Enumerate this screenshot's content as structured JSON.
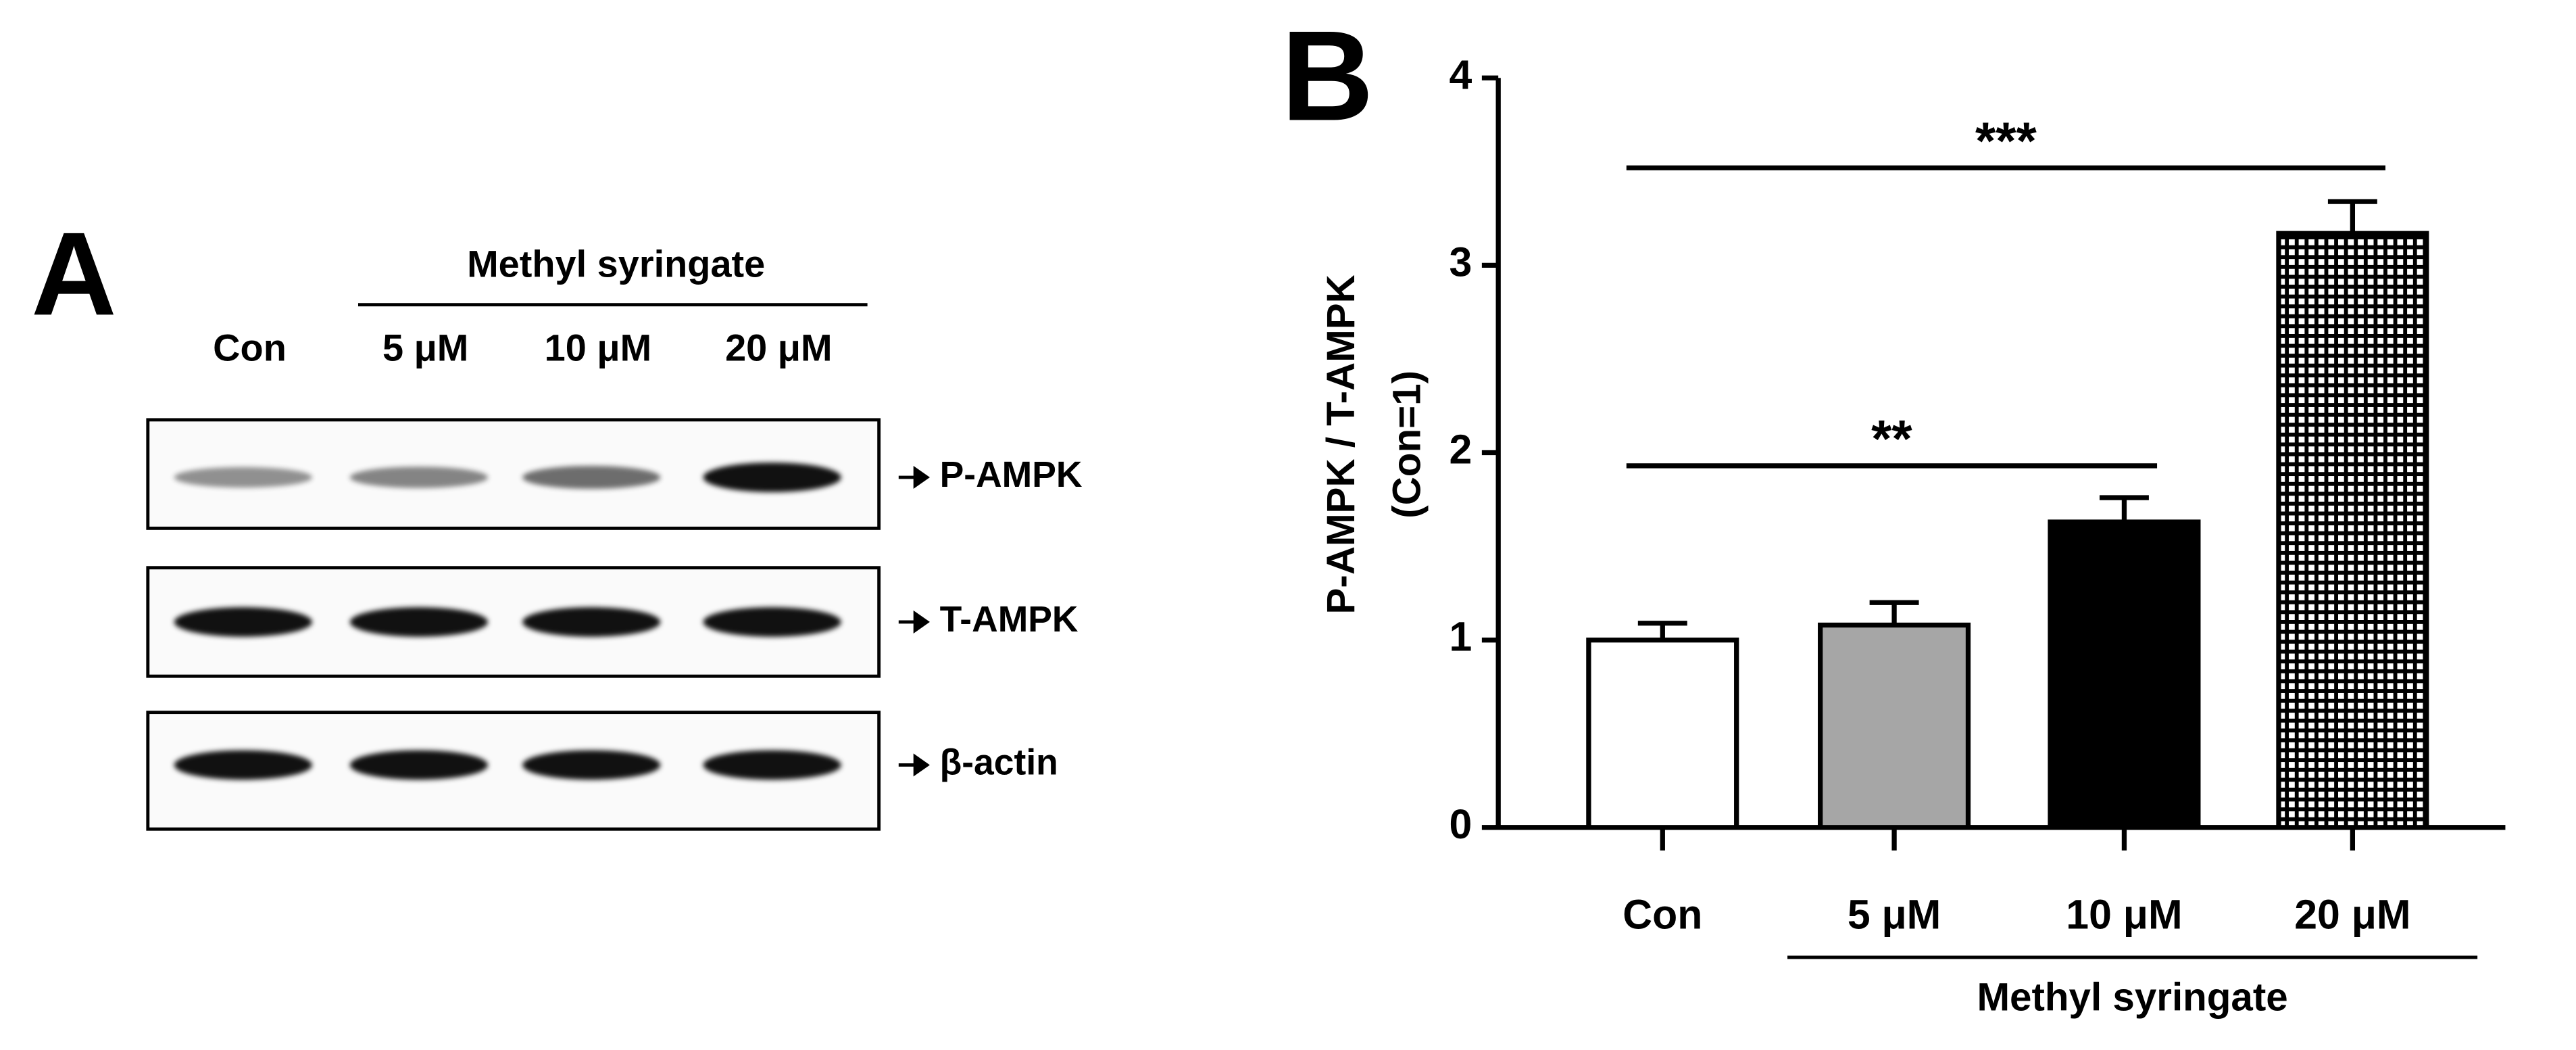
{
  "panel_a": {
    "label": "A",
    "treatment": "Methyl syringate",
    "lanes": [
      "Con",
      "5 μM",
      "10 μM",
      "20 μM"
    ],
    "blots": [
      "P-AMPK",
      "T-AMPK",
      "β-actin"
    ]
  },
  "chart_data": {
    "type": "bar",
    "panel_label": "B",
    "ylabel": "P-AMPK / T-AMPK",
    "ylabel_note": "(Con=1)",
    "categories": [
      "Con",
      "5 μM",
      "10 μM",
      "20 μM"
    ],
    "group_label": "Methyl syringate",
    "values": [
      1.0,
      1.08,
      1.63,
      3.17
    ],
    "errors": [
      0.09,
      0.12,
      0.13,
      0.17
    ],
    "bar_fills": [
      "#ffffff",
      "#a6a6a6",
      "#000000",
      "checker"
    ],
    "ylim": [
      0,
      4
    ],
    "yticks": [
      0,
      1,
      2,
      3,
      4
    ],
    "annotations": [
      {
        "text": "**",
        "from": 0,
        "to": 2,
        "y": 1.93
      },
      {
        "text": "***",
        "from": 0,
        "to": 3,
        "y": 3.52
      }
    ]
  }
}
